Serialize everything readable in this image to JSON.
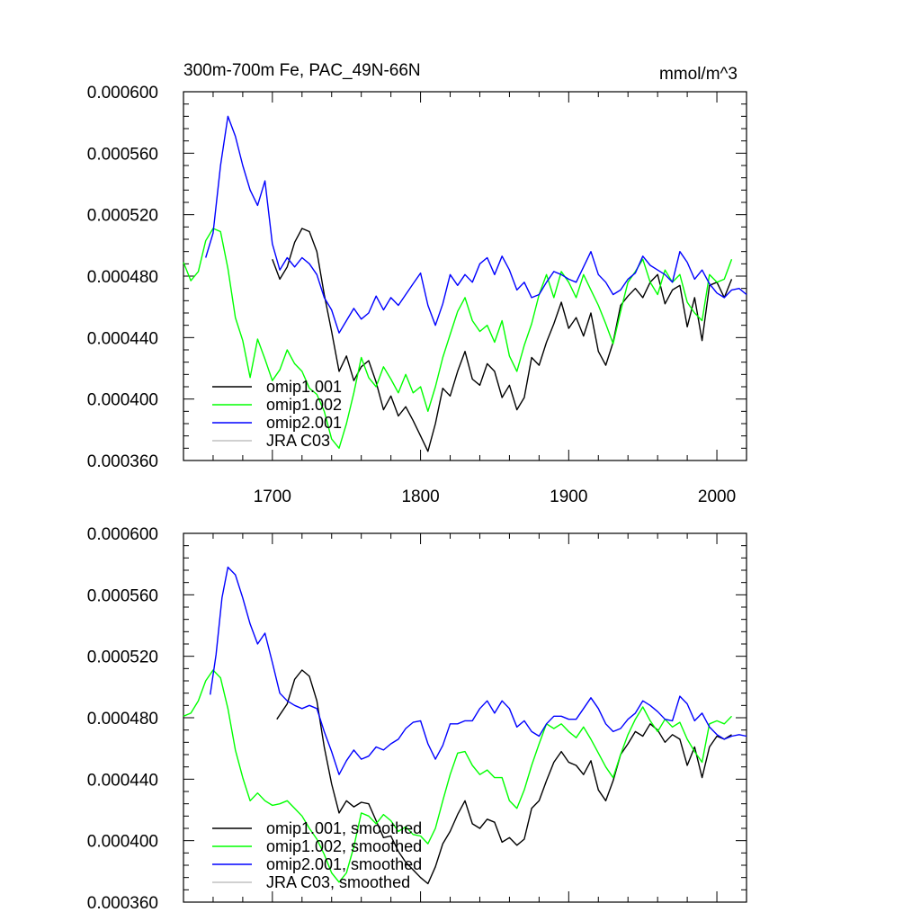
{
  "figure": {
    "title": "300m-700m Fe, PAC_49N-66N",
    "units": "mmol/m^3"
  },
  "chart_data": [
    {
      "type": "line",
      "panel": "top",
      "title": "300m-700m Fe, PAC_49N-66N",
      "units": "mmol/m^3",
      "xlabel": "",
      "ylabel": "",
      "xlim": [
        1640,
        2020
      ],
      "ylim": [
        0.00036,
        0.0006
      ],
      "xticks": [
        1700,
        1800,
        1900,
        2000
      ],
      "xtick_labels": [
        "1700",
        "1800",
        "1900",
        "2000"
      ],
      "yticks": [
        0.00036,
        0.0004,
        0.00044,
        0.00048,
        0.00052,
        0.00056,
        0.0006
      ],
      "ytick_labels": [
        "0.000360",
        "0.000400",
        "0.000440",
        "0.000480",
        "0.000520",
        "0.000560",
        "0.000600"
      ],
      "legend_position": "bottom-left",
      "series": [
        {
          "name": "omip1.001",
          "color": "#000000",
          "x": [
            1700,
            1705,
            1710,
            1715,
            1720,
            1725,
            1730,
            1735,
            1740,
            1745,
            1750,
            1755,
            1760,
            1765,
            1770,
            1775,
            1780,
            1785,
            1790,
            1795,
            1800,
            1805,
            1810,
            1815,
            1820,
            1825,
            1830,
            1835,
            1840,
            1845,
            1850,
            1855,
            1860,
            1865,
            1870,
            1875,
            1880,
            1885,
            1890,
            1895,
            1900,
            1905,
            1910,
            1915,
            1920,
            1925,
            1930,
            1935,
            1940,
            1945,
            1950,
            1955,
            1960,
            1965,
            1970,
            1975,
            1980,
            1985,
            1990,
            1995,
            2000,
            2005,
            2010
          ],
          "values": [
            0.000491,
            0.000478,
            0.000486,
            0.000502,
            0.000511,
            0.000509,
            0.000496,
            0.000468,
            0.000444,
            0.000418,
            0.000428,
            0.000412,
            0.000421,
            0.000425,
            0.000411,
            0.000393,
            0.000402,
            0.000389,
            0.000395,
            0.000386,
            0.000376,
            0.000366,
            0.000384,
            0.000407,
            0.000402,
            0.000418,
            0.000431,
            0.000413,
            0.000409,
            0.000423,
            0.000418,
            0.000401,
            0.000409,
            0.000393,
            0.000401,
            0.000427,
            0.000422,
            0.000437,
            0.000449,
            0.000463,
            0.000446,
            0.000453,
            0.000441,
            0.000456,
            0.000431,
            0.000422,
            0.000437,
            0.000461,
            0.000467,
            0.000472,
            0.000466,
            0.000476,
            0.000481,
            0.000462,
            0.000471,
            0.000474,
            0.000447,
            0.000466,
            0.000438,
            0.000474,
            0.000476,
            0.000466,
            0.000478
          ]
        },
        {
          "name": "omip1.002",
          "color": "#00ff00",
          "x": [
            1640,
            1645,
            1650,
            1655,
            1660,
            1665,
            1670,
            1675,
            1680,
            1685,
            1690,
            1695,
            1700,
            1705,
            1710,
            1715,
            1720,
            1725,
            1730,
            1735,
            1740,
            1745,
            1750,
            1755,
            1760,
            1765,
            1770,
            1775,
            1780,
            1785,
            1790,
            1795,
            1800,
            1805,
            1810,
            1815,
            1820,
            1825,
            1830,
            1835,
            1840,
            1845,
            1850,
            1855,
            1860,
            1865,
            1870,
            1875,
            1880,
            1885,
            1890,
            1895,
            1900,
            1905,
            1910,
            1915,
            1920,
            1925,
            1930,
            1935,
            1940,
            1945,
            1950,
            1955,
            1960,
            1965,
            1970,
            1975,
            1980,
            1985,
            1990,
            1995,
            2000,
            2005,
            2010
          ],
          "values": [
            0.000489,
            0.000477,
            0.000483,
            0.000503,
            0.000511,
            0.000509,
            0.000485,
            0.000453,
            0.000438,
            0.000414,
            0.000439,
            0.000426,
            0.000412,
            0.000419,
            0.000432,
            0.000423,
            0.000418,
            0.000407,
            0.000403,
            0.000392,
            0.000374,
            0.000368,
            0.000384,
            0.000404,
            0.000427,
            0.000414,
            0.000408,
            0.000421,
            0.000413,
            0.000404,
            0.000416,
            0.000404,
            0.000408,
            0.000392,
            0.000408,
            0.000427,
            0.000442,
            0.000457,
            0.000466,
            0.000451,
            0.000444,
            0.000448,
            0.000437,
            0.000451,
            0.000428,
            0.000418,
            0.000435,
            0.000449,
            0.000468,
            0.000481,
            0.000466,
            0.000483,
            0.000476,
            0.000466,
            0.000481,
            0.000471,
            0.000461,
            0.000449,
            0.000436,
            0.000457,
            0.000476,
            0.000483,
            0.000491,
            0.000476,
            0.000468,
            0.000484,
            0.000476,
            0.000481,
            0.000463,
            0.000456,
            0.000451,
            0.000481,
            0.000476,
            0.000478,
            0.000491
          ]
        },
        {
          "name": "omip2.001",
          "color": "#0000ff",
          "x": [
            1655,
            1660,
            1665,
            1670,
            1675,
            1680,
            1685,
            1690,
            1695,
            1700,
            1705,
            1710,
            1715,
            1720,
            1725,
            1730,
            1735,
            1740,
            1745,
            1750,
            1755,
            1760,
            1765,
            1770,
            1775,
            1780,
            1785,
            1790,
            1795,
            1800,
            1805,
            1810,
            1815,
            1820,
            1825,
            1830,
            1835,
            1840,
            1845,
            1850,
            1855,
            1860,
            1865,
            1870,
            1875,
            1880,
            1885,
            1890,
            1895,
            1900,
            1905,
            1910,
            1915,
            1920,
            1925,
            1930,
            1935,
            1940,
            1945,
            1950,
            1955,
            1960,
            1965,
            1970,
            1975,
            1980,
            1985,
            1990,
            1995,
            2000,
            2005,
            2010,
            2015,
            2020
          ],
          "values": [
            0.000492,
            0.000508,
            0.000552,
            0.000584,
            0.000571,
            0.000552,
            0.000536,
            0.000526,
            0.000542,
            0.000501,
            0.000484,
            0.000492,
            0.000486,
            0.000492,
            0.000488,
            0.000481,
            0.000466,
            0.000458,
            0.000443,
            0.000451,
            0.000459,
            0.000452,
            0.000456,
            0.000467,
            0.000458,
            0.000466,
            0.000461,
            0.000468,
            0.000475,
            0.000482,
            0.000461,
            0.000448,
            0.000462,
            0.000481,
            0.000474,
            0.000481,
            0.000476,
            0.000488,
            0.000492,
            0.000481,
            0.000493,
            0.000484,
            0.000471,
            0.000476,
            0.000466,
            0.000468,
            0.000476,
            0.000483,
            0.000481,
            0.000478,
            0.000476,
            0.000486,
            0.000496,
            0.000481,
            0.000476,
            0.000468,
            0.000471,
            0.000478,
            0.000482,
            0.000493,
            0.000487,
            0.000484,
            0.000481,
            0.000476,
            0.000496,
            0.000489,
            0.000478,
            0.000484,
            0.000475,
            0.000469,
            0.000466,
            0.000471,
            0.000472,
            0.000468
          ]
        },
        {
          "name": "JRA C03",
          "color": "#c0c0c0",
          "x": [],
          "values": []
        }
      ]
    },
    {
      "type": "line",
      "panel": "bottom",
      "title": "",
      "xlabel": "",
      "ylabel": "",
      "xlim": [
        1640,
        2020
      ],
      "ylim": [
        0.00036,
        0.0006
      ],
      "xticks": [
        1700,
        1800,
        1900,
        2000
      ],
      "xtick_labels": [],
      "yticks": [
        0.00036,
        0.0004,
        0.00044,
        0.00048,
        0.00052,
        0.00056,
        0.0006
      ],
      "ytick_labels": [
        "0.000360",
        "0.000400",
        "0.000440",
        "0.000480",
        "0.000520",
        "0.000560",
        "0.000600"
      ],
      "legend_position": "bottom-left",
      "series": [
        {
          "name": "omip1.001, smoothed",
          "color": "#000000",
          "x": [
            1703,
            1710,
            1715,
            1720,
            1725,
            1730,
            1735,
            1740,
            1745,
            1750,
            1755,
            1760,
            1765,
            1770,
            1775,
            1780,
            1785,
            1790,
            1795,
            1800,
            1805,
            1810,
            1815,
            1820,
            1825,
            1830,
            1835,
            1840,
            1845,
            1850,
            1855,
            1860,
            1865,
            1870,
            1875,
            1880,
            1885,
            1890,
            1895,
            1900,
            1905,
            1910,
            1915,
            1920,
            1925,
            1930,
            1935,
            1940,
            1945,
            1950,
            1955,
            1960,
            1965,
            1970,
            1975,
            1980,
            1985,
            1990,
            1995,
            2000,
            2005,
            2010
          ],
          "values": [
            0.000479,
            0.000489,
            0.000505,
            0.000511,
            0.000507,
            0.000491,
            0.000461,
            0.000437,
            0.000418,
            0.000426,
            0.000422,
            0.000425,
            0.000424,
            0.000413,
            0.000402,
            0.000403,
            0.000393,
            0.000386,
            0.000381,
            0.000376,
            0.000372,
            0.000383,
            0.000398,
            0.000406,
            0.000417,
            0.000426,
            0.000411,
            0.000408,
            0.000414,
            0.000412,
            0.000399,
            0.000402,
            0.000397,
            0.000401,
            0.000421,
            0.000426,
            0.000439,
            0.000451,
            0.000458,
            0.000451,
            0.000449,
            0.000443,
            0.000452,
            0.000433,
            0.000426,
            0.000439,
            0.000456,
            0.000463,
            0.000471,
            0.000468,
            0.000476,
            0.000472,
            0.000464,
            0.000469,
            0.000466,
            0.000449,
            0.000461,
            0.000441,
            0.000461,
            0.000468,
            0.000466,
            0.000469
          ]
        },
        {
          "name": "omip1.002, smoothed",
          "color": "#00ff00",
          "x": [
            1640,
            1645,
            1650,
            1655,
            1660,
            1665,
            1670,
            1675,
            1680,
            1685,
            1690,
            1695,
            1700,
            1705,
            1710,
            1715,
            1720,
            1725,
            1730,
            1735,
            1740,
            1745,
            1750,
            1755,
            1760,
            1765,
            1770,
            1775,
            1780,
            1785,
            1790,
            1795,
            1800,
            1805,
            1810,
            1815,
            1820,
            1825,
            1830,
            1835,
            1840,
            1845,
            1850,
            1855,
            1860,
            1865,
            1870,
            1875,
            1880,
            1885,
            1890,
            1895,
            1900,
            1905,
            1910,
            1915,
            1920,
            1925,
            1930,
            1935,
            1940,
            1945,
            1950,
            1955,
            1960,
            1965,
            1970,
            1975,
            1980,
            1985,
            1990,
            1995,
            2000,
            2005,
            2010
          ],
          "values": [
            0.000481,
            0.000483,
            0.000491,
            0.000504,
            0.000511,
            0.000506,
            0.000486,
            0.000459,
            0.000441,
            0.000426,
            0.000431,
            0.000426,
            0.000423,
            0.000424,
            0.000426,
            0.000421,
            0.000416,
            0.000408,
            0.000401,
            0.000391,
            0.000379,
            0.000373,
            0.000379,
            0.000396,
            0.000418,
            0.000416,
            0.000411,
            0.000417,
            0.000413,
            0.000406,
            0.000409,
            0.000404,
            0.000403,
            0.000398,
            0.000408,
            0.000426,
            0.000443,
            0.000457,
            0.000458,
            0.000449,
            0.000443,
            0.000446,
            0.000441,
            0.000441,
            0.000426,
            0.000421,
            0.000433,
            0.000449,
            0.000463,
            0.000476,
            0.000473,
            0.000476,
            0.000471,
            0.000467,
            0.000474,
            0.000466,
            0.000457,
            0.000448,
            0.000441,
            0.000456,
            0.000469,
            0.000479,
            0.000487,
            0.000478,
            0.000471,
            0.000479,
            0.000474,
            0.000477,
            0.000466,
            0.000458,
            0.000451,
            0.000476,
            0.000478,
            0.000476,
            0.000481
          ]
        },
        {
          "name": "omip2.001, smoothed",
          "color": "#0000ff",
          "x": [
            1658,
            1662,
            1666,
            1670,
            1675,
            1680,
            1685,
            1690,
            1695,
            1700,
            1705,
            1710,
            1715,
            1720,
            1725,
            1730,
            1735,
            1740,
            1745,
            1750,
            1755,
            1760,
            1765,
            1770,
            1775,
            1780,
            1785,
            1790,
            1795,
            1800,
            1805,
            1810,
            1815,
            1820,
            1825,
            1830,
            1835,
            1840,
            1845,
            1850,
            1855,
            1860,
            1865,
            1870,
            1875,
            1880,
            1885,
            1890,
            1895,
            1900,
            1905,
            1910,
            1915,
            1920,
            1925,
            1930,
            1935,
            1940,
            1945,
            1950,
            1955,
            1960,
            1965,
            1970,
            1975,
            1980,
            1985,
            1990,
            1995,
            2000,
            2005,
            2010,
            2015,
            2020
          ],
          "values": [
            0.000495,
            0.000521,
            0.000558,
            0.000578,
            0.000573,
            0.000558,
            0.000541,
            0.000528,
            0.000535,
            0.000516,
            0.000496,
            0.000491,
            0.000488,
            0.000486,
            0.000488,
            0.000486,
            0.000471,
            0.000458,
            0.000443,
            0.000452,
            0.000459,
            0.000453,
            0.000455,
            0.000461,
            0.000459,
            0.000463,
            0.000466,
            0.000473,
            0.000477,
            0.000478,
            0.000463,
            0.000453,
            0.000462,
            0.000476,
            0.000476,
            0.000478,
            0.000478,
            0.000486,
            0.000491,
            0.000483,
            0.000491,
            0.000486,
            0.000474,
            0.000478,
            0.000471,
            0.000468,
            0.000476,
            0.000481,
            0.000481,
            0.000479,
            0.000479,
            0.000486,
            0.000493,
            0.000486,
            0.000476,
            0.000471,
            0.000473,
            0.000479,
            0.000483,
            0.000491,
            0.000488,
            0.000484,
            0.000479,
            0.000478,
            0.000494,
            0.000489,
            0.000478,
            0.000483,
            0.000474,
            0.000469,
            0.000466,
            0.000468,
            0.000469,
            0.000468
          ]
        },
        {
          "name": "JRA C03, smoothed",
          "color": "#c0c0c0",
          "x": [],
          "values": []
        }
      ]
    }
  ]
}
